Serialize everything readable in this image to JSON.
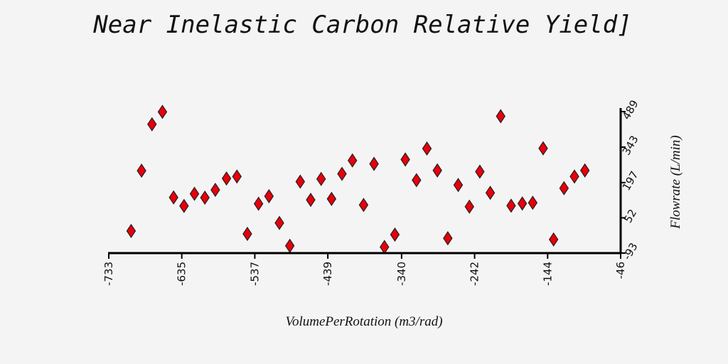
{
  "chart_data": {
    "type": "scatter",
    "title": "Near Inelastic Carbon Relative Yield]",
    "xlabel": "VolumePerRotation (m3/rad)",
    "ylabel": "Flowrate (L/min)",
    "xlim": [
      -733,
      -46
    ],
    "ylim": [
      -93,
      489
    ],
    "xticks": [
      "-733",
      "-635",
      "-537",
      "-439",
      "-340",
      "-242",
      "-144",
      "-46"
    ],
    "yticks": [
      "-93",
      "52",
      "197",
      "343",
      "489"
    ],
    "marker": "diamond",
    "marker_color": "#e8000b",
    "background": "#f4f4f4",
    "y_axis_side": "right",
    "grid": false,
    "points": [
      {
        "x": -703,
        "y": -2
      },
      {
        "x": -689,
        "y": 246
      },
      {
        "x": -675,
        "y": 437
      },
      {
        "x": -661,
        "y": 488
      },
      {
        "x": -646,
        "y": 136
      },
      {
        "x": -632,
        "y": 101
      },
      {
        "x": -618,
        "y": 151
      },
      {
        "x": -604,
        "y": 135
      },
      {
        "x": -590,
        "y": 167
      },
      {
        "x": -575,
        "y": 214
      },
      {
        "x": -561,
        "y": 222
      },
      {
        "x": -547,
        "y": -14
      },
      {
        "x": -532,
        "y": 110
      },
      {
        "x": -518,
        "y": 141
      },
      {
        "x": -504,
        "y": 31
      },
      {
        "x": -490,
        "y": -63
      },
      {
        "x": -476,
        "y": 201
      },
      {
        "x": -462,
        "y": 126
      },
      {
        "x": -448,
        "y": 212
      },
      {
        "x": -434,
        "y": 130
      },
      {
        "x": -420,
        "y": 233
      },
      {
        "x": -406,
        "y": 288
      },
      {
        "x": -391,
        "y": 105
      },
      {
        "x": -377,
        "y": 274
      },
      {
        "x": -363,
        "y": -68
      },
      {
        "x": -349,
        "y": -17
      },
      {
        "x": -335,
        "y": 292
      },
      {
        "x": -320,
        "y": 207
      },
      {
        "x": -306,
        "y": 337
      },
      {
        "x": -292,
        "y": 247
      },
      {
        "x": -278,
        "y": -32
      },
      {
        "x": -264,
        "y": 187
      },
      {
        "x": -249,
        "y": 98
      },
      {
        "x": -235,
        "y": 242
      },
      {
        "x": -221,
        "y": 155
      },
      {
        "x": -207,
        "y": 470
      },
      {
        "x": -193,
        "y": 102
      },
      {
        "x": -178,
        "y": 111
      },
      {
        "x": -164,
        "y": 114
      },
      {
        "x": -150,
        "y": 338
      },
      {
        "x": -136,
        "y": -37
      },
      {
        "x": -122,
        "y": 174
      },
      {
        "x": -108,
        "y": 222
      },
      {
        "x": -94,
        "y": 247
      }
    ]
  }
}
